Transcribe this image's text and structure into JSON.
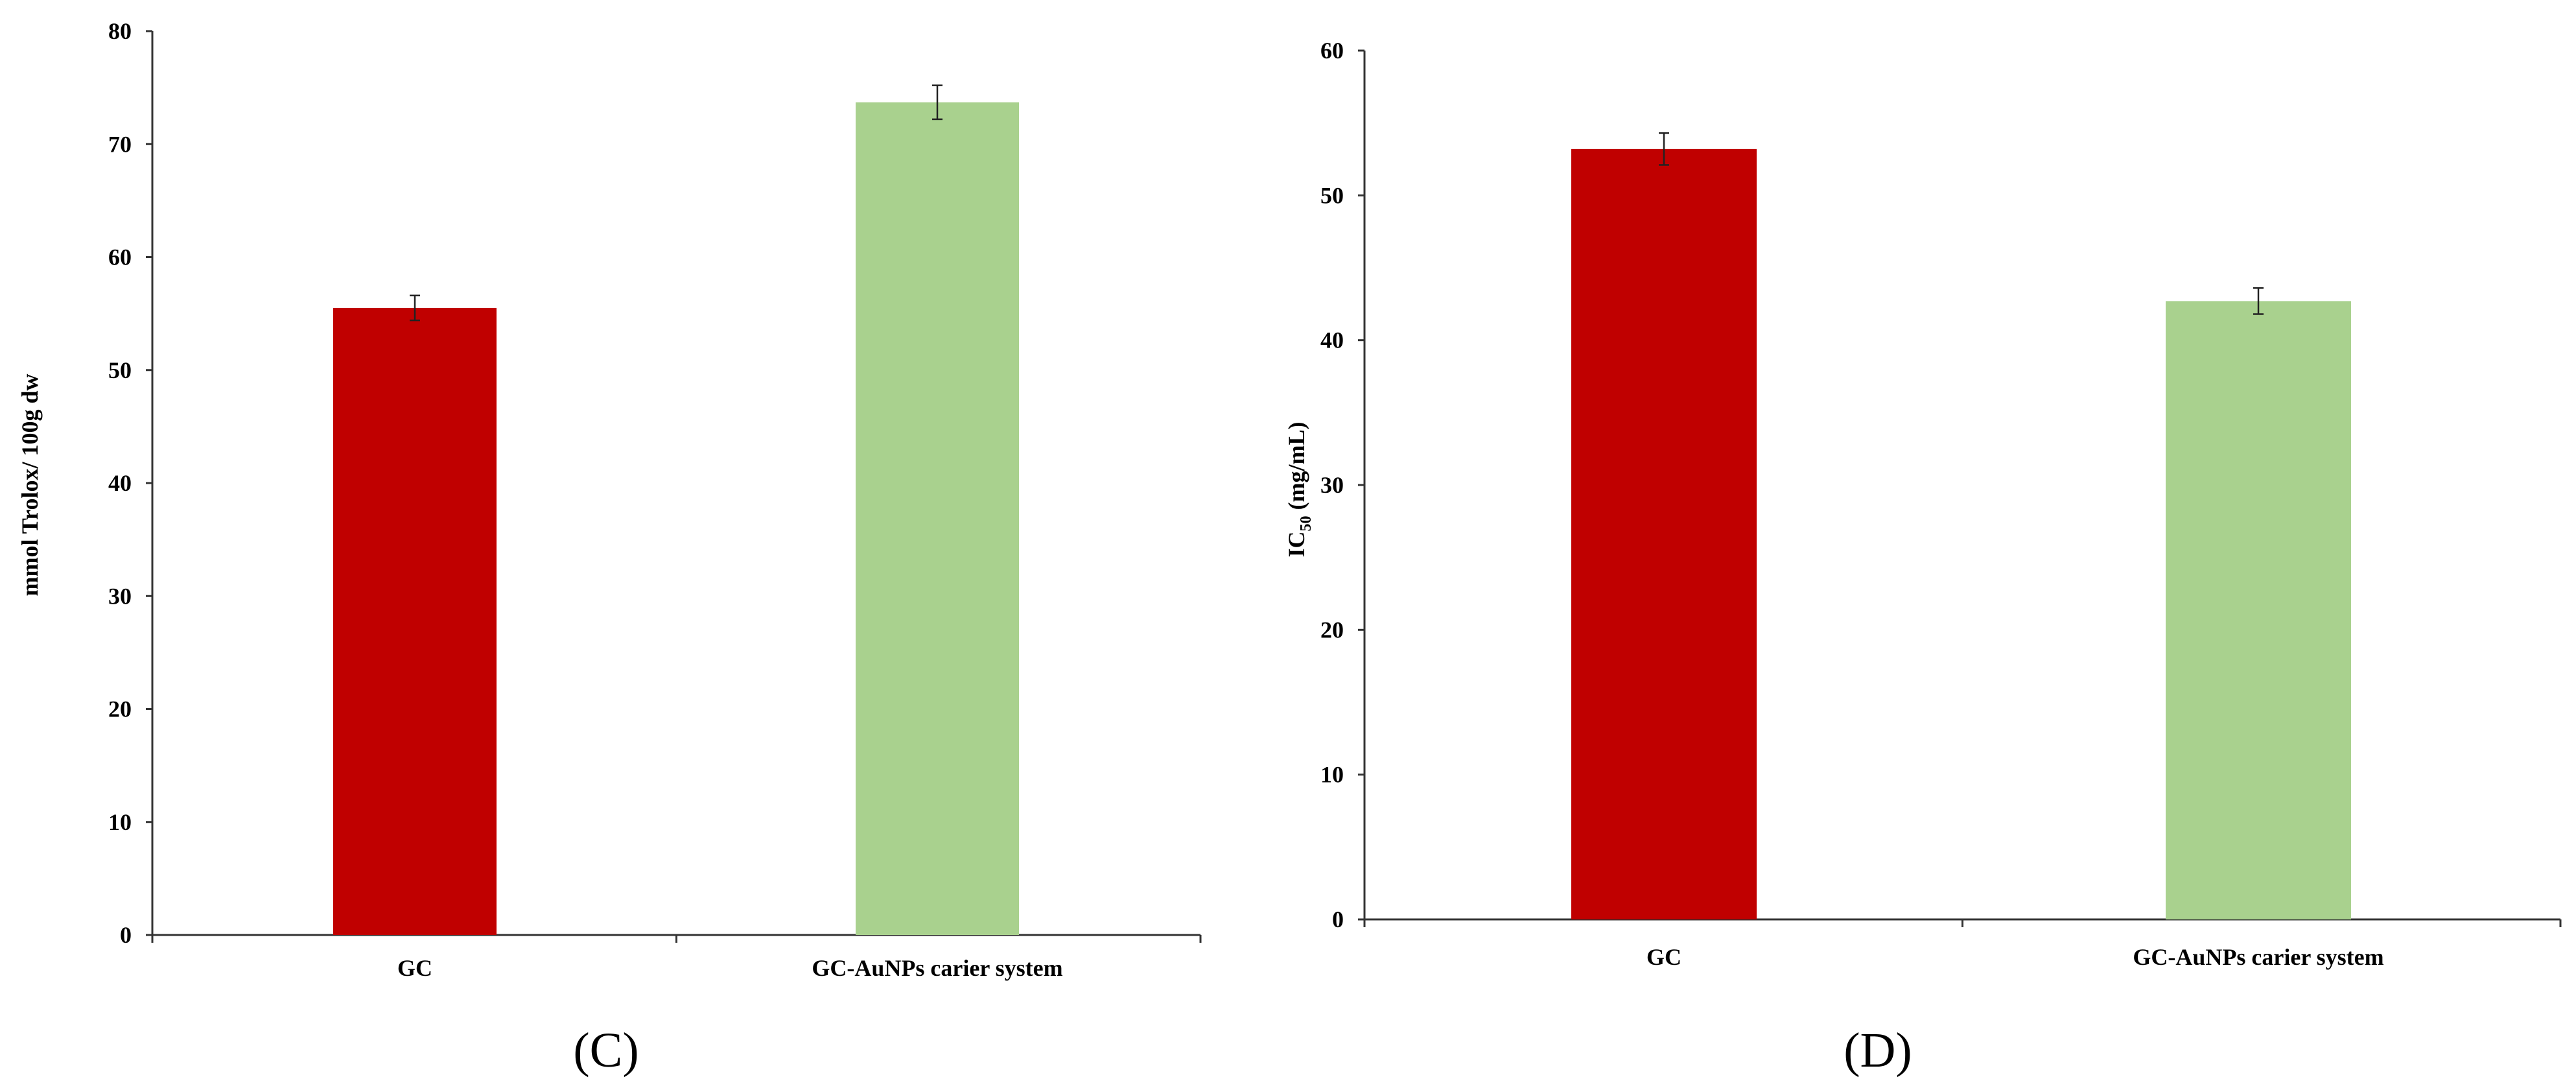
{
  "chart_data": [
    {
      "type": "bar",
      "panel_label": "(C)",
      "categories": [
        "GC",
        "GC-AuNPs carier system"
      ],
      "values": [
        55.5,
        73.7
      ],
      "errors": [
        1.1,
        1.5
      ],
      "colors": [
        "#c00000",
        "#a9d18e"
      ],
      "ylabel": "mmol Trolox/ 100g dw",
      "ylim": [
        0,
        80
      ],
      "yticks": [
        0,
        10,
        20,
        30,
        40,
        50,
        60,
        70,
        80
      ],
      "grid": false
    },
    {
      "type": "bar",
      "panel_label": "(D)",
      "categories": [
        "GC",
        "GC-AuNPs carier system"
      ],
      "values": [
        53.2,
        42.7
      ],
      "errors": [
        1.1,
        0.9
      ],
      "colors": [
        "#c00000",
        "#a9d18e"
      ],
      "ylabel_main": "IC",
      "ylabel_sub": "50",
      "ylabel_rest": " (mg/mL)",
      "ylim": [
        0,
        60
      ],
      "yticks": [
        0,
        10,
        20,
        30,
        40,
        50,
        60
      ],
      "grid": false
    }
  ]
}
